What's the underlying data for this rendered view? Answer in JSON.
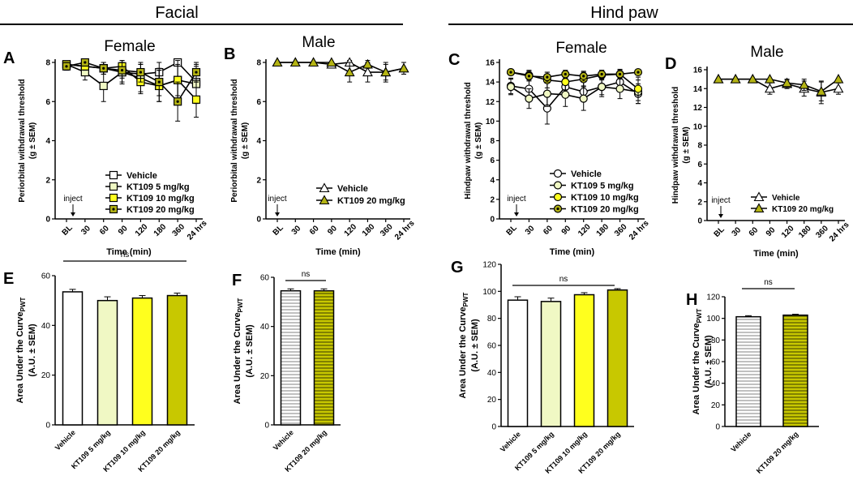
{
  "section_titles": {
    "facial": "Facial",
    "hindpaw": "Hind paw"
  },
  "colors": {
    "veh": "#ffffff",
    "d5": "#f0f8c4",
    "d10": "#ffff1e",
    "d20": "#c8c800",
    "d20_marker": "#b4b414",
    "line": "#000000"
  },
  "chart_data": [
    {
      "id": "A",
      "type": "line",
      "letter": "A",
      "subtitle": "Female",
      "ylabel_lines": [
        "Periorbital withdrawal threshold",
        "(g ± SEM)"
      ],
      "xlabel": "Time (min)",
      "categories": [
        "BL",
        "30",
        "60",
        "90",
        "120",
        "180",
        "360",
        "24 hrs"
      ],
      "ylim": [
        0,
        8
      ],
      "yticks": [
        0,
        2,
        4,
        6,
        8
      ],
      "annotation": "inject",
      "series": [
        {
          "name": "Vehicle",
          "marker": "square",
          "fill": "veh",
          "values": [
            7.9,
            7.8,
            7.7,
            7.5,
            7.4,
            7.5,
            8.0,
            7.0
          ],
          "err": [
            0.1,
            0.3,
            0.3,
            0.5,
            0.5,
            0.5,
            0.1,
            0.8
          ]
        },
        {
          "name": "KT109 5 mg/kg",
          "marker": "square",
          "fill": "d5",
          "values": [
            7.9,
            7.5,
            6.8,
            7.5,
            7.2,
            6.8,
            7.1,
            6.9
          ],
          "err": [
            0.1,
            0.4,
            0.8,
            0.6,
            0.7,
            0.8,
            1.0,
            1.0
          ]
        },
        {
          "name": "KT109 10 mg/kg",
          "marker": "square",
          "fill": "d10",
          "values": [
            7.9,
            7.8,
            7.7,
            7.8,
            7.0,
            6.8,
            7.1,
            6.1
          ],
          "err": [
            0.1,
            0.2,
            0.3,
            0.3,
            0.6,
            0.8,
            0.8,
            0.9
          ]
        },
        {
          "name": "KT109 20 mg/kg",
          "marker": "square-dot",
          "fill": "d20_marker",
          "values": [
            7.8,
            8.0,
            7.7,
            7.6,
            7.5,
            7.0,
            6.0,
            7.5
          ],
          "err": [
            0.2,
            0.1,
            0.3,
            0.4,
            0.5,
            0.7,
            1.0,
            0.5
          ]
        }
      ]
    },
    {
      "id": "B",
      "type": "line",
      "letter": "B",
      "subtitle": "Male",
      "ylabel_lines": [
        "Periorbital withdrawal threshold",
        "(g ± SEM)"
      ],
      "xlabel": "Time (min)",
      "categories": [
        "BL",
        "30",
        "60",
        "90",
        "120",
        "180",
        "360",
        "24 hrs"
      ],
      "ylim": [
        0,
        8
      ],
      "yticks": [
        0,
        2,
        4,
        6,
        8
      ],
      "annotation": "inject",
      "series": [
        {
          "name": "Vehicle",
          "marker": "triangle",
          "fill": "veh",
          "values": [
            8.0,
            8.0,
            8.0,
            7.9,
            8.0,
            7.5,
            7.5,
            7.7
          ],
          "err": [
            0.0,
            0.0,
            0.0,
            0.1,
            0.1,
            0.5,
            0.4,
            0.3
          ]
        },
        {
          "name": "KT109 20 mg/kg",
          "marker": "triangle",
          "fill": "d20_marker",
          "values": [
            8.0,
            8.0,
            8.0,
            8.0,
            7.5,
            7.9,
            7.5,
            7.7
          ],
          "err": [
            0.0,
            0.0,
            0.0,
            0.0,
            0.5,
            0.2,
            0.5,
            0.3
          ]
        }
      ]
    },
    {
      "id": "C",
      "type": "line",
      "letter": "C",
      "subtitle": "Female",
      "ylabel_lines": [
        "Hindpaw withdrawal threshold",
        "(g ± SEM)"
      ],
      "xlabel": "Time (min)",
      "categories": [
        "BL",
        "30",
        "60",
        "90",
        "120",
        "180",
        "360",
        "24 hrs"
      ],
      "ylim": [
        0,
        16
      ],
      "yticks": [
        0,
        2,
        4,
        6,
        8,
        10,
        12,
        14,
        16
      ],
      "annotation": "inject",
      "series": [
        {
          "name": "Vehicle",
          "marker": "circle",
          "fill": "veh",
          "values": [
            13.6,
            13.3,
            11.3,
            13.5,
            13.0,
            13.5,
            14.0,
            12.8
          ],
          "err": [
            0.8,
            1.0,
            1.6,
            1.0,
            1.0,
            1.0,
            0.8,
            1.0
          ]
        },
        {
          "name": "KT109 5 mg/kg",
          "marker": "circle",
          "fill": "d5",
          "values": [
            13.5,
            12.3,
            12.8,
            12.7,
            12.3,
            13.5,
            13.3,
            13.0
          ],
          "err": [
            0.8,
            1.0,
            1.3,
            1.2,
            1.2,
            0.8,
            1.0,
            1.2
          ]
        },
        {
          "name": "KT109 10 mg/kg",
          "marker": "circle",
          "fill": "d10",
          "values": [
            15.0,
            14.7,
            14.2,
            14.0,
            14.3,
            14.7,
            14.8,
            13.3
          ],
          "err": [
            0.3,
            0.5,
            0.8,
            0.8,
            0.7,
            0.5,
            0.5,
            1.2
          ]
        },
        {
          "name": "KT109 20 mg/kg",
          "marker": "circle-dot",
          "fill": "d20_marker",
          "values": [
            15.0,
            14.6,
            14.5,
            14.8,
            14.6,
            14.8,
            14.8,
            15.0
          ],
          "err": [
            0.3,
            0.5,
            0.5,
            0.4,
            0.5,
            0.4,
            0.4,
            0.2
          ]
        }
      ]
    },
    {
      "id": "D",
      "type": "line",
      "letter": "D",
      "subtitle": "Male",
      "ylabel_lines": [
        "Hindpaw withdrawal threshold",
        "(g ± SEM)"
      ],
      "xlabel": "Time (min)",
      "categories": [
        "BL",
        "30",
        "60",
        "90",
        "120",
        "180",
        "360",
        "24 hrs"
      ],
      "ylim": [
        0,
        16
      ],
      "yticks": [
        0,
        2,
        4,
        6,
        8,
        10,
        12,
        14,
        16
      ],
      "annotation": "inject",
      "series": [
        {
          "name": "Vehicle",
          "marker": "triangle",
          "fill": "veh",
          "values": [
            15.0,
            15.0,
            15.0,
            14.0,
            14.5,
            14.0,
            13.6,
            14.0
          ],
          "err": [
            0.0,
            0.0,
            0.0,
            0.6,
            0.5,
            0.8,
            1.2,
            0.6
          ]
        },
        {
          "name": "KT109 20 mg/kg",
          "marker": "triangle",
          "fill": "d20_marker",
          "values": [
            15.0,
            15.0,
            15.0,
            15.0,
            14.6,
            14.4,
            13.7,
            15.0
          ],
          "err": [
            0.0,
            0.0,
            0.0,
            0.0,
            0.3,
            0.6,
            1.0,
            0.0
          ]
        }
      ]
    },
    {
      "id": "E",
      "type": "bar",
      "letter": "E",
      "ylabel_main": "Area Under the Curve",
      "ylabel_sub": "PWT",
      "ylabel_line2": "(A.U. ± SEM)",
      "categories": [
        "Vehicle",
        "KT109 5 mg/kg",
        "KT109 10 mg/kg",
        "KT109 20 mg/kg"
      ],
      "values": [
        53.5,
        50.0,
        51.0,
        52.0
      ],
      "err": [
        1.0,
        1.5,
        1.0,
        1.0
      ],
      "fills": [
        "veh",
        "d5",
        "d10",
        "d20"
      ],
      "hatch": [
        false,
        false,
        false,
        false
      ],
      "ylim": [
        0,
        60
      ],
      "yticks": [
        0,
        20,
        40,
        60
      ],
      "annotation": "ns"
    },
    {
      "id": "F",
      "type": "bar",
      "letter": "F",
      "ylabel_main": "Area Under the Curve",
      "ylabel_sub": "PWT",
      "ylabel_line2": "(A.U. ± SEM)",
      "categories": [
        "Vehicle",
        "KT109 20 mg/kg"
      ],
      "values": [
        54.5,
        54.5
      ],
      "err": [
        0.8,
        0.8
      ],
      "fills": [
        "veh",
        "d20"
      ],
      "hatch": [
        true,
        true
      ],
      "ylim": [
        0,
        60
      ],
      "yticks": [
        0,
        20,
        40,
        60
      ],
      "annotation": "ns"
    },
    {
      "id": "G",
      "type": "bar",
      "letter": "G",
      "ylabel_main": "Area Under the Curve",
      "ylabel_sub": "PWT",
      "ylabel_line2": "(A.U. ± SEM)",
      "categories": [
        "Vehicle",
        "KT109 5 mg/kg",
        "KT109 10 mg/kg",
        "KT109 20 mg/kg"
      ],
      "values": [
        93.5,
        92.5,
        97.5,
        101.0
      ],
      "err": [
        2.5,
        2.5,
        1.5,
        1.0
      ],
      "fills": [
        "veh",
        "d5",
        "d10",
        "d20"
      ],
      "hatch": [
        false,
        false,
        false,
        false
      ],
      "ylim": [
        0,
        120
      ],
      "yticks": [
        0,
        20,
        40,
        60,
        80,
        100,
        120
      ],
      "annotation": "ns"
    },
    {
      "id": "H",
      "type": "bar",
      "letter": "H",
      "ylabel_main": "Area Under the Curve",
      "ylabel_sub": "PWT",
      "ylabel_line2": "(A.U. ± SEM)",
      "categories": [
        "Vehicle",
        "KT109 20 mg/kg"
      ],
      "values": [
        101.5,
        103.0
      ],
      "err": [
        1.0,
        0.8
      ],
      "fills": [
        "veh",
        "d20"
      ],
      "hatch": [
        true,
        true
      ],
      "ylim": [
        0,
        120
      ],
      "yticks": [
        0,
        20,
        40,
        60,
        80,
        100,
        120
      ],
      "annotation": "ns"
    }
  ]
}
